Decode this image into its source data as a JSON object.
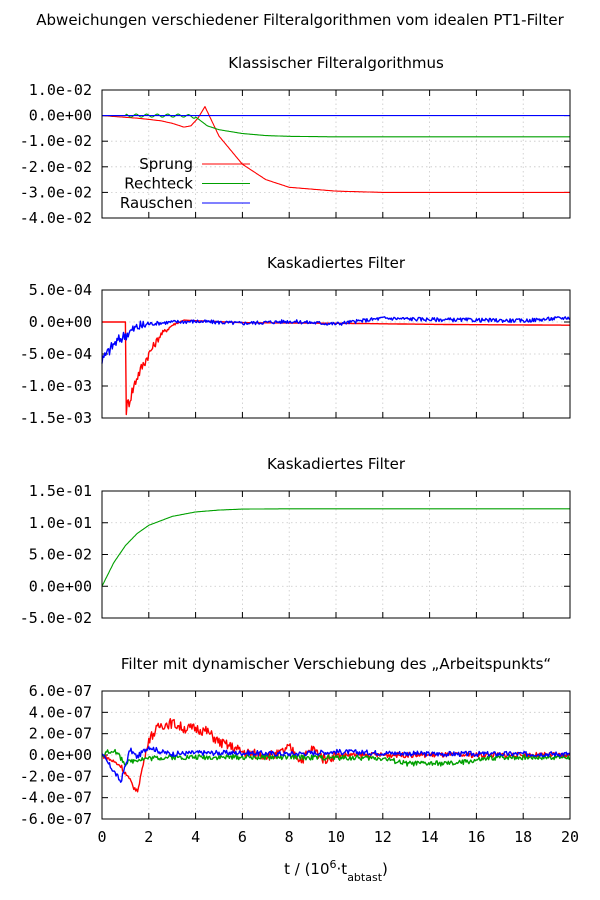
{
  "title": "Abweichungen verschiedener Filteralgorithmen vom idealen PT1-Filter",
  "xlabel_main": "t / (10",
  "xlabel_sup": "6",
  "xlabel_mid": "·t",
  "xlabel_sub": "abtast",
  "xlabel_end": ")",
  "colors": {
    "Sprung": "#ff0000",
    "Rechteck": "#00a000",
    "Rauschen": "#0000ff"
  },
  "chart_data": [
    {
      "type": "line",
      "title": "Klassischer Filteralgorithmus",
      "xlim": [
        0,
        20
      ],
      "ylim": [
        -0.04,
        0.01
      ],
      "ytick_labels": [
        "1.0e-02",
        "0.0e+00",
        "-1.0e-02",
        "-2.0e-02",
        "-3.0e-02",
        "-4.0e-02"
      ],
      "yticks": [
        0.01,
        0,
        -0.01,
        -0.02,
        -0.03,
        -0.04
      ],
      "legend": [
        "Sprung",
        "Rechteck",
        "Rauschen"
      ],
      "legend_placement": "lower-left",
      "grid": true,
      "series": [
        {
          "name": "Sprung",
          "x": [
            0,
            1.5,
            2.5,
            3.0,
            3.5,
            3.8,
            4.1,
            4.4,
            5,
            6,
            7,
            8,
            10,
            12,
            15,
            20
          ],
          "y": [
            0,
            -0.001,
            -0.002,
            -0.003,
            -0.0045,
            -0.004,
            -0.001,
            0.0035,
            -0.008,
            -0.019,
            -0.025,
            -0.028,
            -0.0295,
            -0.03,
            -0.03,
            -0.03
          ]
        },
        {
          "name": "Rechteck",
          "x": [
            0,
            3.5,
            4,
            4.5,
            5,
            6,
            7,
            8,
            10,
            12,
            20
          ],
          "y": [
            0,
            0,
            -0.0005,
            -0.004,
            -0.0055,
            -0.007,
            -0.0078,
            -0.0081,
            -0.0083,
            -0.0083,
            -0.0083
          ]
        },
        {
          "name": "Rauschen",
          "x": [
            0,
            20
          ],
          "y": [
            0,
            0
          ]
        }
      ]
    },
    {
      "type": "line",
      "title": "Kaskadiertes Filter",
      "xlim": [
        0,
        20
      ],
      "ylim": [
        -0.0015,
        0.0005
      ],
      "ytick_labels": [
        "5.0e-04",
        "0.0e+00",
        "-5.0e-04",
        "-1.0e-03",
        "-1.5e-03"
      ],
      "yticks": [
        0.0005,
        0,
        -0.0005,
        -0.001,
        -0.0015
      ],
      "grid": true,
      "series": [
        {
          "name": "Sprung",
          "x": [
            0,
            1.0,
            1.0,
            1.5,
            2,
            2.5,
            3,
            3.5,
            4,
            6,
            10,
            15,
            20
          ],
          "y": [
            0,
            0,
            -0.0014,
            -0.00085,
            -0.0005,
            -0.0002,
            -5e-05,
            3e-05,
            2e-05,
            -1e-05,
            -2e-05,
            -4e-05,
            -5e-05
          ]
        },
        {
          "name": "Rauschen",
          "x": [
            0,
            0.5,
            1.0,
            1.5,
            2,
            3,
            4,
            6,
            8,
            10,
            12,
            14,
            16,
            18,
            20
          ],
          "y": [
            -0.0006,
            -0.00035,
            -0.0002,
            -8e-05,
            -3e-05,
            0,
            1e-05,
            -2e-05,
            1e-05,
            -3e-05,
            6e-05,
            4e-05,
            3e-05,
            2e-05,
            7e-05
          ]
        }
      ]
    },
    {
      "type": "line",
      "title": "Kaskadiertes Filter",
      "xlim": [
        0,
        20
      ],
      "ylim": [
        -0.05,
        0.15
      ],
      "ytick_labels": [
        "1.5e-01",
        "1.0e-01",
        "5.0e-02",
        "0.0e+00",
        "-5.0e-02"
      ],
      "yticks": [
        0.15,
        0.1,
        0.05,
        0,
        -0.05
      ],
      "grid": true,
      "series": [
        {
          "name": "Rechteck",
          "x": [
            0,
            0.5,
            1,
            1.5,
            2,
            3,
            4,
            5,
            6,
            8,
            10,
            20
          ],
          "y": [
            0,
            0.037,
            0.064,
            0.083,
            0.096,
            0.11,
            0.117,
            0.12,
            0.1215,
            0.122,
            0.122,
            0.122
          ]
        }
      ]
    },
    {
      "type": "line",
      "title": "Filter mit dynamischer Verschiebung des „Arbeitspunkts“",
      "xlim": [
        0,
        20
      ],
      "ylim": [
        -6e-07,
        6e-07
      ],
      "ytick_labels": [
        "6.0e-07",
        "4.0e-07",
        "2.0e-07",
        "0.0e+00",
        "-2.0e-07",
        "-4.0e-07",
        "-6.0e-07"
      ],
      "yticks": [
        6e-07,
        4e-07,
        2e-07,
        0,
        -2e-07,
        -4e-07,
        -6e-07
      ],
      "xtick_labels": [
        "0",
        "2",
        "4",
        "6",
        "8",
        "10",
        "12",
        "14",
        "16",
        "18",
        "20"
      ],
      "xticks": [
        0,
        2,
        4,
        6,
        8,
        10,
        12,
        14,
        16,
        18,
        20
      ],
      "grid": true,
      "series": [
        {
          "name": "Sprung",
          "x": [
            0,
            0.8,
            1.5,
            2,
            2.5,
            3,
            3.5,
            4,
            4.5,
            5,
            5.5,
            6,
            6.5,
            7,
            7.5,
            8,
            8.5,
            9,
            9.5,
            10,
            11,
            12,
            14,
            16,
            18,
            20
          ],
          "y": [
            0,
            -1e-07,
            -3.5e-07,
            1.5e-07,
            2.8e-07,
            3e-07,
            2.5e-07,
            2.5e-07,
            2.2e-07,
            1.2e-07,
            8e-08,
            3e-08,
            1e-08,
            0,
            0,
            7e-08,
            -5e-08,
            6e-08,
            -4e-08,
            0,
            0,
            0,
            0,
            0,
            0,
            0
          ]
        },
        {
          "name": "Rechteck",
          "x": [
            0,
            0.5,
            1,
            1.5,
            2,
            3,
            4,
            6,
            8,
            10,
            12,
            13,
            14,
            15,
            16,
            17,
            18,
            20
          ],
          "y": [
            0,
            5e-08,
            -8e-08,
            -4e-08,
            -3e-08,
            -2e-08,
            -2e-08,
            -2e-08,
            -2e-08,
            -2.5e-08,
            -3e-08,
            -8e-08,
            -8e-08,
            -8e-08,
            -5e-08,
            -2e-08,
            -2e-08,
            -2e-08
          ]
        },
        {
          "name": "Rauschen",
          "x": [
            0,
            0.5,
            0.8,
            1.0,
            1.2,
            1.5,
            2,
            2.5,
            3,
            4,
            6,
            8,
            10,
            12,
            14,
            16,
            18,
            20
          ],
          "y": [
            0,
            -1.5e-07,
            -2.5e-07,
            -1e-07,
            5e-08,
            -2e-08,
            8e-08,
            3e-08,
            1e-08,
            2e-08,
            2e-08,
            1e-08,
            3e-08,
            2e-08,
            1e-08,
            1e-08,
            1e-08,
            1e-08
          ]
        }
      ]
    }
  ]
}
